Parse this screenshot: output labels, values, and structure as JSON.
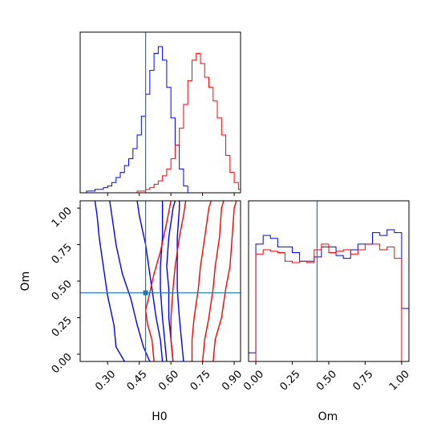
{
  "chart_data": {
    "type": "corner",
    "parameters": [
      "H0",
      "Om"
    ],
    "truths": {
      "H0": 0.48,
      "Om": 0.42
    },
    "colors": {
      "series_a": "#0000ff",
      "series_b": "#ff0000",
      "truth": "#1f77b4"
    },
    "series": [
      {
        "color_key": "series_a",
        "hist_H0": {
          "bin_edges": [
            0.2,
            0.22,
            0.24,
            0.26,
            0.28,
            0.3,
            0.32,
            0.34,
            0.36,
            0.38,
            0.4,
            0.42,
            0.44,
            0.46,
            0.48,
            0.5,
            0.52,
            0.54,
            0.56,
            0.58,
            0.6,
            0.62,
            0.64,
            0.66,
            0.68
          ],
          "counts": [
            1,
            1,
            2,
            2,
            3,
            4,
            6,
            9,
            12,
            16,
            20,
            26,
            34,
            45,
            58,
            72,
            82,
            86,
            78,
            62,
            44,
            28,
            14,
            4
          ]
        },
        "hist_Om": {
          "bin_edges": [
            -0.05,
            0.0,
            0.05,
            0.1,
            0.15,
            0.2,
            0.25,
            0.3,
            0.35,
            0.4,
            0.45,
            0.5,
            0.55,
            0.6,
            0.65,
            0.7,
            0.75,
            0.8,
            0.85,
            0.9,
            0.95,
            1.0,
            1.05
          ],
          "counts": [
            0.06,
            0.82,
            0.88,
            0.86,
            0.8,
            0.8,
            0.76,
            0.7,
            0.7,
            0.73,
            0.8,
            0.8,
            0.74,
            0.72,
            0.78,
            0.82,
            0.82,
            0.9,
            0.88,
            0.92,
            0.9,
            0.37
          ]
        },
        "contours_H0_Om": [
          [
            [
              0.5,
              -0.05
            ],
            [
              0.47,
              0.05
            ],
            [
              0.44,
              0.2
            ],
            [
              0.41,
              0.38
            ],
            [
              0.37,
              0.55
            ],
            [
              0.34,
              0.75
            ],
            [
              0.32,
              0.95
            ],
            [
              0.31,
              1.05
            ]
          ],
          [
            [
              0.38,
              -0.05
            ],
            [
              0.34,
              0.05
            ],
            [
              0.33,
              0.2
            ],
            [
              0.3,
              0.4
            ],
            [
              0.28,
              0.6
            ],
            [
              0.26,
              0.8
            ],
            [
              0.25,
              0.95
            ],
            [
              0.24,
              1.05
            ]
          ],
          [
            [
              0.56,
              -0.05
            ],
            [
              0.55,
              0.1
            ],
            [
              0.53,
              0.25
            ],
            [
              0.51,
              0.45
            ],
            [
              0.5,
              0.55
            ],
            [
              0.48,
              0.75
            ],
            [
              0.45,
              0.95
            ],
            [
              0.44,
              1.05
            ]
          ],
          [
            [
              0.58,
              -0.05
            ],
            [
              0.57,
              0.1
            ],
            [
              0.56,
              0.25
            ],
            [
              0.55,
              0.45
            ],
            [
              0.55,
              0.6
            ],
            [
              0.56,
              0.8
            ],
            [
              0.56,
              1.0
            ],
            [
              0.56,
              1.05
            ]
          ],
          [
            [
              0.61,
              -0.05
            ],
            [
              0.6,
              0.1
            ],
            [
              0.59,
              0.25
            ],
            [
              0.59,
              0.45
            ],
            [
              0.58,
              0.6
            ],
            [
              0.59,
              0.8
            ],
            [
              0.61,
              1.0
            ],
            [
              0.62,
              1.05
            ]
          ],
          [
            [
              0.66,
              -0.05
            ],
            [
              0.65,
              0.1
            ],
            [
              0.64,
              0.25
            ],
            [
              0.63,
              0.45
            ],
            [
              0.63,
              0.6
            ],
            [
              0.63,
              0.8
            ],
            [
              0.64,
              1.0
            ],
            [
              0.64,
              1.05
            ]
          ]
        ]
      },
      {
        "color_key": "series_b",
        "hist_H0": {
          "bin_edges": [
            0.44,
            0.46,
            0.48,
            0.5,
            0.52,
            0.54,
            0.56,
            0.58,
            0.6,
            0.62,
            0.64,
            0.66,
            0.68,
            0.7,
            0.72,
            0.74,
            0.76,
            0.78,
            0.8,
            0.82,
            0.84,
            0.86,
            0.88,
            0.9,
            0.92,
            0.94
          ],
          "counts": [
            1,
            1,
            2,
            3,
            5,
            7,
            10,
            14,
            20,
            28,
            38,
            52,
            66,
            78,
            82,
            76,
            68,
            62,
            54,
            44,
            34,
            22,
            12,
            6,
            2
          ]
        },
        "hist_Om": {
          "bin_edges": [
            -0.05,
            0.0,
            0.05,
            0.1,
            0.15,
            0.2,
            0.25,
            0.3,
            0.35,
            0.4,
            0.45,
            0.5,
            0.55,
            0.6,
            0.65,
            0.7,
            0.75,
            0.8,
            0.85,
            0.9,
            0.95,
            1.0,
            1.05
          ],
          "counts": [
            0.0,
            0.75,
            0.78,
            0.77,
            0.76,
            0.7,
            0.69,
            0.7,
            0.69,
            0.78,
            0.82,
            0.76,
            0.77,
            0.78,
            0.75,
            0.78,
            0.82,
            0.82,
            0.78,
            0.8,
            0.72,
            0.0
          ]
        },
        "contours_H0_Om": [
          [
            [
              0.52,
              -0.05
            ],
            [
              0.51,
              0.1
            ],
            [
              0.49,
              0.2
            ],
            [
              0.48,
              0.3
            ],
            [
              0.5,
              0.42
            ],
            [
              0.52,
              0.55
            ],
            [
              0.55,
              0.7
            ],
            [
              0.58,
              0.9
            ],
            [
              0.6,
              1.05
            ]
          ],
          [
            [
              0.61,
              -0.05
            ],
            [
              0.6,
              0.1
            ],
            [
              0.6,
              0.25
            ],
            [
              0.61,
              0.45
            ],
            [
              0.62,
              0.6
            ],
            [
              0.64,
              0.8
            ],
            [
              0.66,
              0.95
            ],
            [
              0.67,
              1.05
            ]
          ],
          [
            [
              0.7,
              -0.05
            ],
            [
              0.7,
              0.1
            ],
            [
              0.71,
              0.25
            ],
            [
              0.73,
              0.45
            ],
            [
              0.74,
              0.6
            ],
            [
              0.76,
              0.8
            ],
            [
              0.78,
              1.0
            ],
            [
              0.79,
              1.05
            ]
          ],
          [
            [
              0.75,
              -0.05
            ],
            [
              0.76,
              0.1
            ],
            [
              0.78,
              0.25
            ],
            [
              0.8,
              0.45
            ],
            [
              0.81,
              0.6
            ],
            [
              0.83,
              0.8
            ],
            [
              0.84,
              1.0
            ],
            [
              0.85,
              1.05
            ]
          ],
          [
            [
              0.8,
              -0.05
            ],
            [
              0.81,
              0.1
            ],
            [
              0.84,
              0.25
            ],
            [
              0.86,
              0.45
            ],
            [
              0.88,
              0.6
            ],
            [
              0.89,
              0.8
            ],
            [
              0.9,
              1.0
            ],
            [
              0.91,
              1.05
            ]
          ]
        ]
      }
    ],
    "panels": {
      "hist_H0": {
        "xlim": [
          0.17,
          0.93
        ]
      },
      "hist_Om": {
        "xlim": [
          -0.05,
          1.05
        ]
      },
      "scatter": {
        "xlim": [
          0.17,
          0.93
        ],
        "ylim": [
          -0.05,
          1.05
        ]
      }
    },
    "axes": {
      "xlabel_left": "H0",
      "xlabel_right": "Om",
      "ylabel": "Om",
      "h0_ticks": [
        "0.30",
        "0.45",
        "0.60",
        "0.75",
        "0.90"
      ],
      "om_ticks": [
        "0.00",
        "0.25",
        "0.50",
        "0.75",
        "1.00"
      ]
    },
    "grid": false
  }
}
